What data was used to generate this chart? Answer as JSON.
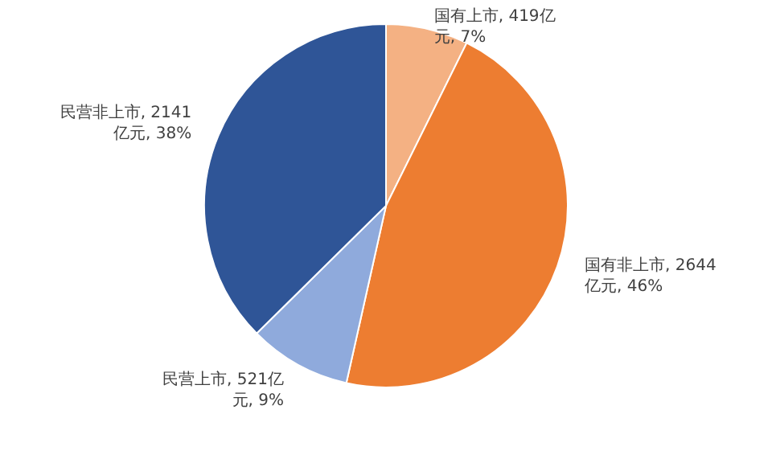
{
  "chart_data": {
    "type": "pie",
    "categories": [
      "国有上市",
      "国有非上市",
      "民营上市",
      "民营非上市"
    ],
    "values": [
      419,
      2644,
      521,
      2141
    ],
    "colors": [
      "#f4b183",
      "#ed7d31",
      "#8faadc",
      "#2f5597"
    ],
    "value_labels": [
      "419亿元, 7%",
      "2644亿元, 46%",
      "521亿元, 9%",
      "2141亿元, 38%"
    ]
  }
}
